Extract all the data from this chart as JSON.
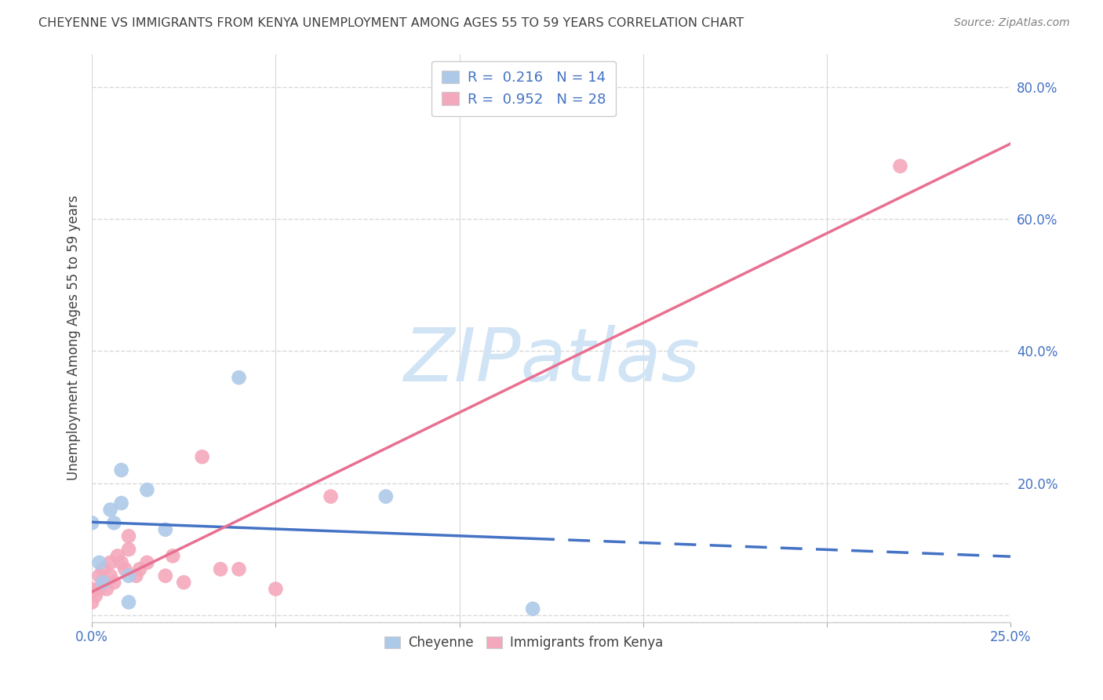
{
  "title": "CHEYENNE VS IMMIGRANTS FROM KENYA UNEMPLOYMENT AMONG AGES 55 TO 59 YEARS CORRELATION CHART",
  "source": "Source: ZipAtlas.com",
  "ylabel": "Unemployment Among Ages 55 to 59 years",
  "xlim": [
    0.0,
    0.25
  ],
  "ylim": [
    -0.01,
    0.85
  ],
  "yticks": [
    0.0,
    0.2,
    0.4,
    0.6,
    0.8
  ],
  "ytick_labels": [
    "",
    "20.0%",
    "40.0%",
    "60.0%",
    "80.0%"
  ],
  "xticks": [
    0.0,
    0.05,
    0.1,
    0.15,
    0.2,
    0.25
  ],
  "cheyenne_color": "#adc9e8",
  "cheyenne_line_color": "#4472c4",
  "kenya_color": "#f4a8bc",
  "kenya_line_color": "#e87090",
  "cheyenne_R": 0.216,
  "cheyenne_N": 14,
  "kenya_R": 0.952,
  "kenya_N": 28,
  "cheyenne_x": [
    0.0,
    0.002,
    0.003,
    0.005,
    0.006,
    0.008,
    0.008,
    0.01,
    0.01,
    0.015,
    0.02,
    0.04,
    0.08,
    0.12
  ],
  "cheyenne_y": [
    0.14,
    0.08,
    0.05,
    0.16,
    0.14,
    0.17,
    0.22,
    0.06,
    0.02,
    0.19,
    0.13,
    0.36,
    0.18,
    0.01
  ],
  "kenya_x": [
    0.0,
    0.0,
    0.001,
    0.002,
    0.002,
    0.003,
    0.003,
    0.004,
    0.005,
    0.005,
    0.006,
    0.007,
    0.008,
    0.009,
    0.01,
    0.01,
    0.012,
    0.013,
    0.015,
    0.02,
    0.022,
    0.025,
    0.03,
    0.035,
    0.04,
    0.05,
    0.065,
    0.22
  ],
  "kenya_y": [
    0.02,
    0.04,
    0.03,
    0.04,
    0.06,
    0.05,
    0.07,
    0.04,
    0.06,
    0.08,
    0.05,
    0.09,
    0.08,
    0.07,
    0.1,
    0.12,
    0.06,
    0.07,
    0.08,
    0.06,
    0.09,
    0.05,
    0.24,
    0.07,
    0.07,
    0.04,
    0.18,
    0.68
  ],
  "watermark_text": "ZIPatlas",
  "watermark_color": "#d0e4f5",
  "background_color": "#ffffff",
  "grid_color": "#d8d8d8",
  "text_color": "#4472c4",
  "title_color": "#404040",
  "source_color": "#808080"
}
